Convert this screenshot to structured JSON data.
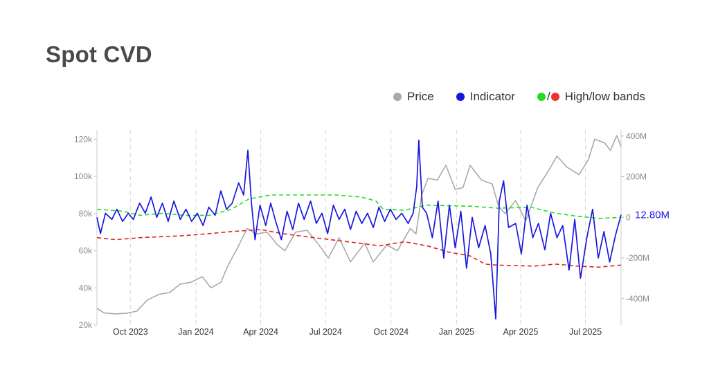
{
  "title": "Spot CVD",
  "legend": {
    "price_label": "Price",
    "indicator_label": "Indicator",
    "bands_slash": "/",
    "bands_label": "High/low bands"
  },
  "colors": {
    "price": "#a9a9a9",
    "indicator": "#1717e0",
    "high_band": "#22dd22",
    "low_band": "#dd2222"
  },
  "chart_data": {
    "type": "line",
    "x_start": "2023-08-15",
    "x_end": "2025-08-20",
    "x_ticks": [
      {
        "date": "2023-10-01",
        "label": "Oct 2023"
      },
      {
        "date": "2024-01-01",
        "label": "Jan 2024"
      },
      {
        "date": "2024-04-01",
        "label": "Apr 2024"
      },
      {
        "date": "2024-07-01",
        "label": "Jul 2024"
      },
      {
        "date": "2024-10-01",
        "label": "Oct 2024"
      },
      {
        "date": "2025-01-01",
        "label": "Jan 2025"
      },
      {
        "date": "2025-04-01",
        "label": "Apr 2025"
      },
      {
        "date": "2025-07-01",
        "label": "Jul 2025"
      }
    ],
    "y_left": {
      "min": 20000,
      "max": 125000,
      "ticks": [
        20000,
        40000,
        60000,
        80000,
        100000,
        120000
      ],
      "labels": [
        "20k",
        "40k",
        "60k",
        "80k",
        "100k",
        "120k"
      ]
    },
    "y_right": {
      "min": -530000000,
      "max": 430000000,
      "ticks": [
        -400000000,
        -200000000,
        0,
        200000000,
        400000000
      ],
      "labels": [
        "-400M",
        "-200M",
        "0",
        "200M",
        "400M"
      ]
    },
    "last_value_label": "12.80M",
    "series": [
      {
        "name": "Price",
        "axis": "left",
        "points": [
          [
            "2023-08-15",
            29000
          ],
          [
            "2023-08-25",
            26500
          ],
          [
            "2023-09-10",
            26000
          ],
          [
            "2023-09-25",
            26300
          ],
          [
            "2023-10-10",
            27500
          ],
          [
            "2023-10-25",
            33500
          ],
          [
            "2023-11-10",
            36500
          ],
          [
            "2023-11-25",
            37500
          ],
          [
            "2023-12-10",
            42000
          ],
          [
            "2023-12-25",
            43000
          ],
          [
            "2024-01-10",
            46000
          ],
          [
            "2024-01-22",
            40000
          ],
          [
            "2024-02-05",
            43000
          ],
          [
            "2024-02-15",
            52000
          ],
          [
            "2024-02-29",
            62000
          ],
          [
            "2024-03-13",
            72000
          ],
          [
            "2024-03-25",
            69000
          ],
          [
            "2024-04-10",
            70000
          ],
          [
            "2024-04-25",
            63000
          ],
          [
            "2024-05-05",
            60000
          ],
          [
            "2024-05-20",
            70000
          ],
          [
            "2024-06-05",
            71000
          ],
          [
            "2024-06-20",
            64000
          ],
          [
            "2024-07-05",
            56000
          ],
          [
            "2024-07-20",
            67000
          ],
          [
            "2024-08-05",
            54000
          ],
          [
            "2024-08-25",
            64000
          ],
          [
            "2024-09-06",
            54000
          ],
          [
            "2024-09-25",
            63000
          ],
          [
            "2024-10-10",
            60000
          ],
          [
            "2024-10-28",
            72000
          ],
          [
            "2024-11-05",
            69000
          ],
          [
            "2024-11-13",
            90000
          ],
          [
            "2024-11-22",
            99000
          ],
          [
            "2024-12-05",
            98000
          ],
          [
            "2024-12-17",
            106000
          ],
          [
            "2024-12-30",
            93000
          ],
          [
            "2025-01-10",
            94000
          ],
          [
            "2025-01-20",
            106000
          ],
          [
            "2025-02-05",
            98000
          ],
          [
            "2025-02-20",
            96000
          ],
          [
            "2025-03-01",
            84000
          ],
          [
            "2025-03-10",
            80000
          ],
          [
            "2025-03-25",
            87000
          ],
          [
            "2025-04-08",
            76000
          ],
          [
            "2025-04-25",
            94000
          ],
          [
            "2025-05-10",
            103000
          ],
          [
            "2025-05-22",
            111000
          ],
          [
            "2025-06-05",
            105000
          ],
          [
            "2025-06-22",
            101000
          ],
          [
            "2025-07-05",
            109000
          ],
          [
            "2025-07-14",
            120000
          ],
          [
            "2025-07-28",
            118000
          ],
          [
            "2025-08-05",
            114000
          ],
          [
            "2025-08-14",
            122000
          ],
          [
            "2025-08-20",
            116000
          ]
        ]
      },
      {
        "name": "Indicator",
        "axis": "right",
        "points": [
          [
            "2023-08-15",
            0
          ],
          [
            "2023-08-20",
            -80000000
          ],
          [
            "2023-08-27",
            20000000
          ],
          [
            "2023-09-05",
            -10000000
          ],
          [
            "2023-09-12",
            40000000
          ],
          [
            "2023-09-20",
            -20000000
          ],
          [
            "2023-09-28",
            20000000
          ],
          [
            "2023-10-05",
            -10000000
          ],
          [
            "2023-10-14",
            70000000
          ],
          [
            "2023-10-22",
            20000000
          ],
          [
            "2023-10-30",
            100000000
          ],
          [
            "2023-11-07",
            0
          ],
          [
            "2023-11-15",
            70000000
          ],
          [
            "2023-11-23",
            -20000000
          ],
          [
            "2023-12-01",
            80000000
          ],
          [
            "2023-12-10",
            -10000000
          ],
          [
            "2023-12-18",
            40000000
          ],
          [
            "2023-12-26",
            -20000000
          ],
          [
            "2024-01-03",
            20000000
          ],
          [
            "2024-01-11",
            -40000000
          ],
          [
            "2024-01-19",
            50000000
          ],
          [
            "2024-01-28",
            10000000
          ],
          [
            "2024-02-05",
            130000000
          ],
          [
            "2024-02-13",
            40000000
          ],
          [
            "2024-02-21",
            70000000
          ],
          [
            "2024-03-01",
            170000000
          ],
          [
            "2024-03-08",
            110000000
          ],
          [
            "2024-03-14",
            330000000
          ],
          [
            "2024-03-19",
            70000000
          ],
          [
            "2024-03-24",
            -110000000
          ],
          [
            "2024-03-31",
            60000000
          ],
          [
            "2024-04-08",
            -40000000
          ],
          [
            "2024-04-15",
            70000000
          ],
          [
            "2024-04-22",
            -20000000
          ],
          [
            "2024-04-30",
            -110000000
          ],
          [
            "2024-05-08",
            30000000
          ],
          [
            "2024-05-16",
            -60000000
          ],
          [
            "2024-05-24",
            70000000
          ],
          [
            "2024-06-01",
            -10000000
          ],
          [
            "2024-06-10",
            80000000
          ],
          [
            "2024-06-18",
            -30000000
          ],
          [
            "2024-06-26",
            20000000
          ],
          [
            "2024-07-04",
            -80000000
          ],
          [
            "2024-07-12",
            60000000
          ],
          [
            "2024-07-20",
            -10000000
          ],
          [
            "2024-07-28",
            40000000
          ],
          [
            "2024-08-05",
            -60000000
          ],
          [
            "2024-08-13",
            30000000
          ],
          [
            "2024-08-21",
            -30000000
          ],
          [
            "2024-08-29",
            20000000
          ],
          [
            "2024-09-06",
            -50000000
          ],
          [
            "2024-09-14",
            50000000
          ],
          [
            "2024-09-22",
            -20000000
          ],
          [
            "2024-09-30",
            40000000
          ],
          [
            "2024-10-08",
            -10000000
          ],
          [
            "2024-10-16",
            20000000
          ],
          [
            "2024-10-25",
            -30000000
          ],
          [
            "2024-11-01",
            20000000
          ],
          [
            "2024-11-06",
            150000000
          ],
          [
            "2024-11-09",
            380000000
          ],
          [
            "2024-11-14",
            50000000
          ],
          [
            "2024-11-20",
            20000000
          ],
          [
            "2024-11-28",
            -100000000
          ],
          [
            "2024-12-06",
            80000000
          ],
          [
            "2024-12-14",
            -200000000
          ],
          [
            "2024-12-22",
            60000000
          ],
          [
            "2024-12-30",
            -150000000
          ],
          [
            "2025-01-07",
            30000000
          ],
          [
            "2025-01-15",
            -250000000
          ],
          [
            "2025-01-23",
            0
          ],
          [
            "2025-02-01",
            -150000000
          ],
          [
            "2025-02-10",
            -40000000
          ],
          [
            "2025-02-18",
            -180000000
          ],
          [
            "2025-02-25",
            -500000000
          ],
          [
            "2025-03-02",
            80000000
          ],
          [
            "2025-03-08",
            180000000
          ],
          [
            "2025-03-15",
            -50000000
          ],
          [
            "2025-03-25",
            -30000000
          ],
          [
            "2025-04-02",
            -180000000
          ],
          [
            "2025-04-10",
            60000000
          ],
          [
            "2025-04-18",
            -100000000
          ],
          [
            "2025-04-26",
            -30000000
          ],
          [
            "2025-05-05",
            -160000000
          ],
          [
            "2025-05-13",
            20000000
          ],
          [
            "2025-05-22",
            -100000000
          ],
          [
            "2025-05-30",
            -40000000
          ],
          [
            "2025-06-08",
            -260000000
          ],
          [
            "2025-06-16",
            -10000000
          ],
          [
            "2025-06-24",
            -300000000
          ],
          [
            "2025-07-03",
            -100000000
          ],
          [
            "2025-07-11",
            40000000
          ],
          [
            "2025-07-19",
            -200000000
          ],
          [
            "2025-07-27",
            -70000000
          ],
          [
            "2025-08-04",
            -220000000
          ],
          [
            "2025-08-12",
            -90000000
          ],
          [
            "2025-08-20",
            12800000
          ]
        ]
      },
      {
        "name": "High band",
        "axis": "right",
        "points": [
          [
            "2023-08-15",
            40000000
          ],
          [
            "2023-09-20",
            30000000
          ],
          [
            "2023-10-15",
            10000000
          ],
          [
            "2023-11-15",
            20000000
          ],
          [
            "2023-12-15",
            10000000
          ],
          [
            "2024-01-20",
            10000000
          ],
          [
            "2024-02-20",
            40000000
          ],
          [
            "2024-03-15",
            90000000
          ],
          [
            "2024-04-15",
            110000000
          ],
          [
            "2024-06-01",
            110000000
          ],
          [
            "2024-07-15",
            110000000
          ],
          [
            "2024-08-20",
            100000000
          ],
          [
            "2024-09-10",
            80000000
          ],
          [
            "2024-09-20",
            40000000
          ],
          [
            "2024-10-20",
            35000000
          ],
          [
            "2024-11-20",
            60000000
          ],
          [
            "2025-01-20",
            55000000
          ],
          [
            "2025-03-01",
            45000000
          ],
          [
            "2025-04-15",
            50000000
          ],
          [
            "2025-05-20",
            20000000
          ],
          [
            "2025-06-20",
            5000000
          ],
          [
            "2025-07-20",
            -5000000
          ],
          [
            "2025-08-20",
            0
          ]
        ]
      },
      {
        "name": "Low band",
        "axis": "right",
        "points": [
          [
            "2023-08-15",
            -100000000
          ],
          [
            "2023-09-10",
            -110000000
          ],
          [
            "2023-10-15",
            -100000000
          ],
          [
            "2023-12-15",
            -90000000
          ],
          [
            "2024-01-20",
            -80000000
          ],
          [
            "2024-02-20",
            -70000000
          ],
          [
            "2024-04-01",
            -60000000
          ],
          [
            "2024-05-01",
            -80000000
          ],
          [
            "2024-06-15",
            -100000000
          ],
          [
            "2024-08-01",
            -120000000
          ],
          [
            "2024-09-15",
            -140000000
          ],
          [
            "2024-10-20",
            -120000000
          ],
          [
            "2024-11-20",
            -140000000
          ],
          [
            "2024-12-20",
            -170000000
          ],
          [
            "2025-01-20",
            -190000000
          ],
          [
            "2025-02-10",
            -230000000
          ],
          [
            "2025-02-25",
            -235000000
          ],
          [
            "2025-04-20",
            -240000000
          ],
          [
            "2025-05-20",
            -230000000
          ],
          [
            "2025-06-20",
            -240000000
          ],
          [
            "2025-07-20",
            -245000000
          ],
          [
            "2025-08-20",
            -235000000
          ]
        ]
      }
    ]
  }
}
